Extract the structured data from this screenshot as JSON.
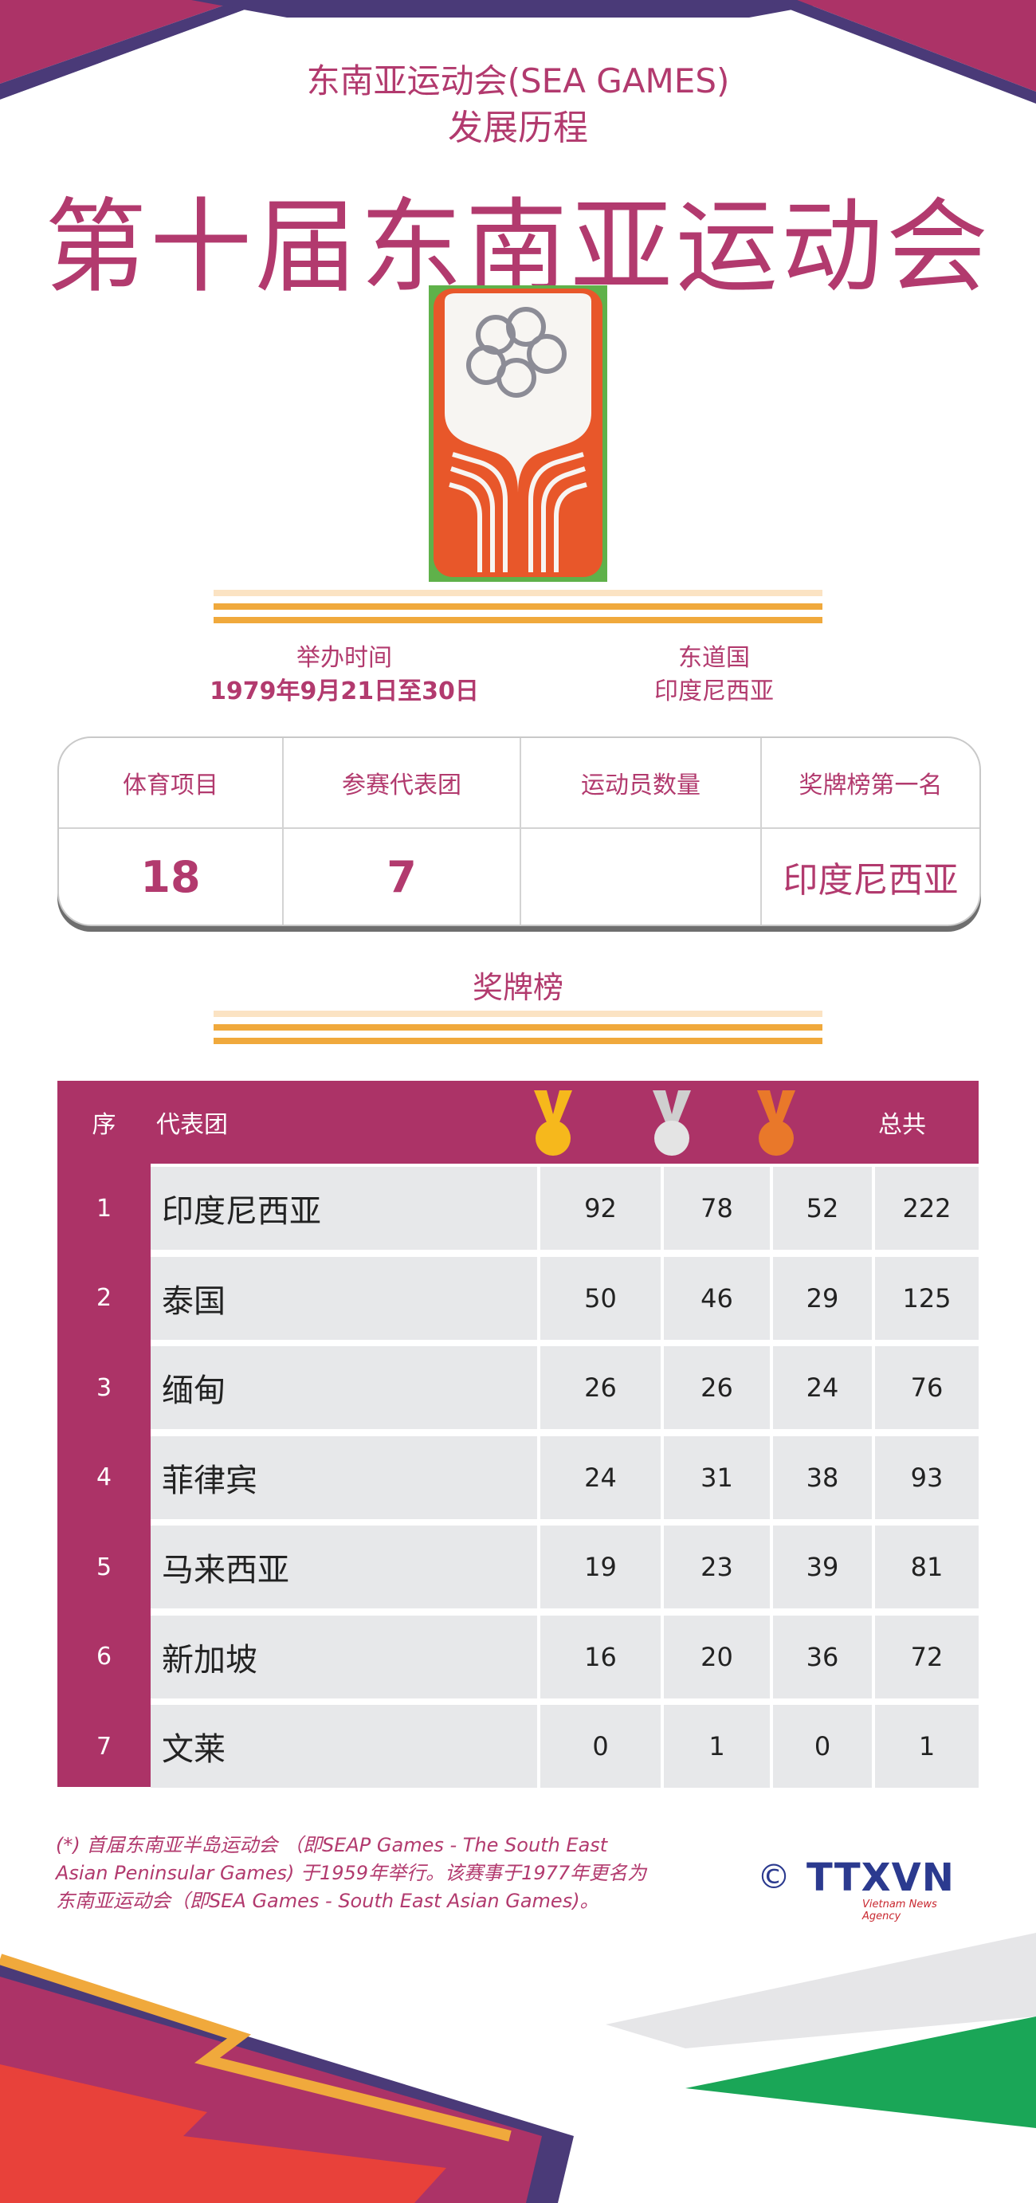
{
  "header": {
    "subtitle_line1": "东南亚运动会(SEA GAMES)",
    "subtitle_line2": "发展历程",
    "main_title": "第十届东南亚运动会"
  },
  "info": {
    "time_label": "举办时间",
    "time_value": "1979年9月21日至30日",
    "host_label": "东道国",
    "host_value": "印度尼西亚"
  },
  "stats": {
    "columns": [
      {
        "label": "体育项目",
        "value": "18"
      },
      {
        "label": "参赛代表团",
        "value": "7"
      },
      {
        "label": "运动员数量",
        "value": ""
      },
      {
        "label": "奖牌榜第一名",
        "value": "印度尼西亚"
      }
    ]
  },
  "medal_table": {
    "heading": "奖牌榜",
    "headers": {
      "rank": "序",
      "team": "代表团",
      "total": "总共"
    },
    "medal_icons": [
      "gold-medal-icon",
      "silver-medal-icon",
      "bronze-medal-icon"
    ],
    "rows": [
      {
        "rank": "1",
        "team": "印度尼西亚",
        "gold": "92",
        "silver": "78",
        "bronze": "52",
        "total": "222"
      },
      {
        "rank": "2",
        "team": "泰国",
        "gold": "50",
        "silver": "46",
        "bronze": "29",
        "total": "125"
      },
      {
        "rank": "3",
        "team": "缅甸",
        "gold": "26",
        "silver": "26",
        "bronze": "24",
        "total": "76"
      },
      {
        "rank": "4",
        "team": "菲律宾",
        "gold": "24",
        "silver": "31",
        "bronze": "38",
        "total": "93"
      },
      {
        "rank": "5",
        "team": "马来西亚",
        "gold": "19",
        "silver": "23",
        "bronze": "39",
        "total": "81"
      },
      {
        "rank": "6",
        "team": "新加坡",
        "gold": "16",
        "silver": "20",
        "bronze": "36",
        "total": "72"
      },
      {
        "rank": "7",
        "team": "文莱",
        "gold": "0",
        "silver": "1",
        "bronze": "0",
        "total": "1"
      }
    ]
  },
  "footnote": "(*) 首届东南亚半岛运动会 （即SEAP Games - The South East Asian Peninsular Games) 于1959年举行。该赛事于1977年更名为东南亚运动会（即SEA Games - South East Asian Games)。",
  "branding": {
    "copyright": "©",
    "name": "TTXVN",
    "tagline": "Vietnam News Agency"
  },
  "colors": {
    "primary": "#b23a6e",
    "table_header": "#ac3367",
    "stripe_orange": "#f0a93c",
    "stripe_light": "#fbe3c3",
    "gold": "#f6b81c",
    "silver": "#cfcfcf",
    "bronze": "#e9782a",
    "brand_blue": "#2b3a8f"
  }
}
